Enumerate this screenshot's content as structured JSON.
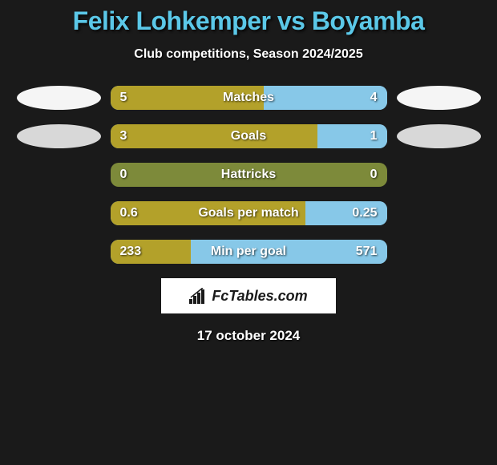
{
  "title": "Felix Lohkemper vs Boyamba",
  "subtitle": "Club competitions, Season 2024/2025",
  "date": "17 october 2024",
  "logo_text": "FcTables.com",
  "colors": {
    "background": "#1a1a1a",
    "title": "#5bc8e8",
    "left_bar": "#b3a12a",
    "right_bar": "#87c8e8",
    "neutral_bar": "#7d8a3a",
    "oval_white": "#f5f5f5",
    "oval_gray": "#d8d8d8",
    "logo_bg": "#ffffff"
  },
  "rows": [
    {
      "label": "Matches",
      "left_value": "5",
      "right_value": "4",
      "left_pct": 55.6,
      "right_pct": 44.4,
      "left_color": "#b3a12a",
      "right_color": "#87c8e8",
      "left_oval": "#f5f5f5",
      "right_oval": "#f5f5f5",
      "show_ovals": true
    },
    {
      "label": "Goals",
      "left_value": "3",
      "right_value": "1",
      "left_pct": 75,
      "right_pct": 25,
      "left_color": "#b3a12a",
      "right_color": "#87c8e8",
      "left_oval": "#d8d8d8",
      "right_oval": "#d8d8d8",
      "show_ovals": true
    },
    {
      "label": "Hattricks",
      "left_value": "0",
      "right_value": "0",
      "left_pct": 0,
      "right_pct": 0,
      "left_color": "#b3a12a",
      "right_color": "#87c8e8",
      "bg_color": "#7d8a3a",
      "show_ovals": false
    },
    {
      "label": "Goals per match",
      "left_value": "0.6",
      "right_value": "0.25",
      "left_pct": 70.6,
      "right_pct": 29.4,
      "left_color": "#b3a12a",
      "right_color": "#87c8e8",
      "show_ovals": false
    },
    {
      "label": "Min per goal",
      "left_value": "233",
      "right_value": "571",
      "left_pct": 29,
      "right_pct": 71,
      "left_color": "#b3a12a",
      "right_color": "#87c8e8",
      "show_ovals": false
    }
  ]
}
